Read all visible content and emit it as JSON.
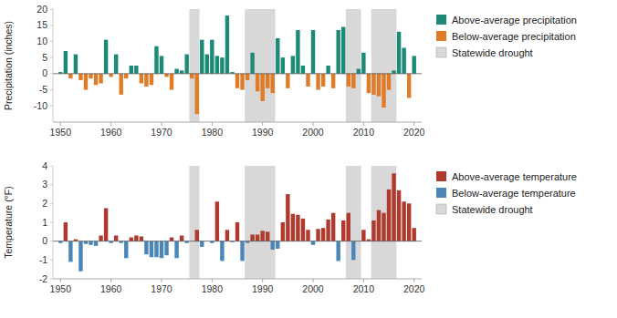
{
  "chart_data": [
    {
      "type": "bar",
      "ylabel": "Precipitation (inches)",
      "x": [
        1950,
        1951,
        1952,
        1953,
        1954,
        1955,
        1956,
        1957,
        1958,
        1959,
        1960,
        1961,
        1962,
        1963,
        1964,
        1965,
        1966,
        1967,
        1968,
        1969,
        1970,
        1971,
        1972,
        1973,
        1974,
        1975,
        1976,
        1977,
        1978,
        1979,
        1980,
        1981,
        1982,
        1983,
        1984,
        1985,
        1986,
        1987,
        1988,
        1989,
        1990,
        1991,
        1992,
        1993,
        1994,
        1995,
        1996,
        1997,
        1998,
        1999,
        2000,
        2001,
        2002,
        2003,
        2004,
        2005,
        2006,
        2007,
        2008,
        2009,
        2010,
        2011,
        2012,
        2013,
        2014,
        2015,
        2016,
        2017,
        2018,
        2019,
        2020
      ],
      "series": [
        {
          "name": "Above-average precipitation",
          "color": "#1d8a78",
          "values": [
            0.5,
            7.0,
            null,
            6.0,
            null,
            null,
            null,
            null,
            null,
            10.5,
            null,
            6.0,
            null,
            null,
            2.5,
            2.5,
            null,
            null,
            null,
            8.5,
            5.5,
            null,
            null,
            1.5,
            1.0,
            6.0,
            null,
            null,
            10.5,
            6.0,
            10.5,
            5.5,
            5.0,
            18.0,
            0.5,
            null,
            null,
            null,
            6.5,
            null,
            null,
            null,
            null,
            11.0,
            5.0,
            null,
            5.5,
            13.5,
            2.5,
            null,
            13.5,
            null,
            null,
            2.5,
            null,
            13.5,
            14.5,
            null,
            null,
            1.5,
            6.5,
            null,
            null,
            null,
            null,
            null,
            1.0,
            13.0,
            8.0,
            null,
            5.5
          ]
        },
        {
          "name": "Below-average precipitation",
          "color": "#e07b27",
          "values": [
            null,
            null,
            -1.5,
            null,
            -2.0,
            -5.0,
            -1.5,
            -3.5,
            -3.0,
            null,
            -1.0,
            null,
            -6.5,
            -1.5,
            null,
            null,
            -3.0,
            -4.0,
            -3.5,
            null,
            null,
            -1.0,
            -5.0,
            null,
            null,
            null,
            -1.5,
            -12.5,
            null,
            null,
            null,
            null,
            null,
            null,
            null,
            -4.5,
            -5.0,
            -2.0,
            null,
            -5.5,
            -8.5,
            -4.5,
            -6.0,
            null,
            null,
            -4.5,
            null,
            null,
            null,
            -4.0,
            null,
            -5.0,
            -4.0,
            null,
            -4.5,
            null,
            null,
            -4.0,
            -4.5,
            null,
            null,
            -6.0,
            -6.5,
            -7.0,
            -10.5,
            -5.0,
            null,
            null,
            null,
            -7.5,
            null
          ]
        }
      ],
      "spans": {
        "name": "Statewide drought",
        "color": "#d8d8d8",
        "ranges": [
          [
            1976,
            1977
          ],
          [
            1987,
            1992
          ],
          [
            2007,
            2009
          ],
          [
            2012,
            2016
          ]
        ]
      },
      "xlim": [
        1948.5,
        2021.5
      ],
      "xticks": [
        1950,
        1960,
        1970,
        1980,
        1990,
        2000,
        2010,
        2020
      ],
      "ylim": [
        -15,
        20
      ],
      "yticks": [
        -10,
        -5,
        0,
        5,
        10,
        15,
        20
      ],
      "grid": false,
      "legend": "right"
    },
    {
      "type": "bar",
      "ylabel": "Temperature (°F)",
      "x": [
        1950,
        1951,
        1952,
        1953,
        1954,
        1955,
        1956,
        1957,
        1958,
        1959,
        1960,
        1961,
        1962,
        1963,
        1964,
        1965,
        1966,
        1967,
        1968,
        1969,
        1970,
        1971,
        1972,
        1973,
        1974,
        1975,
        1976,
        1977,
        1978,
        1979,
        1980,
        1981,
        1982,
        1983,
        1984,
        1985,
        1986,
        1987,
        1988,
        1989,
        1990,
        1991,
        1992,
        1993,
        1994,
        1995,
        1996,
        1997,
        1998,
        1999,
        2000,
        2001,
        2002,
        2003,
        2004,
        2005,
        2006,
        2007,
        2008,
        2009,
        2010,
        2011,
        2012,
        2013,
        2014,
        2015,
        2016,
        2017,
        2018,
        2019,
        2020
      ],
      "series": [
        {
          "name": "Above-average temperature",
          "color": "#b03a2e",
          "values": [
            null,
            1.0,
            null,
            0.1,
            null,
            null,
            null,
            null,
            0.3,
            1.75,
            null,
            0.3,
            null,
            null,
            0.2,
            0.3,
            0.25,
            null,
            null,
            null,
            null,
            null,
            0.2,
            null,
            0.3,
            null,
            0.0,
            0.6,
            null,
            0.0,
            null,
            2.1,
            null,
            0.6,
            null,
            1.0,
            null,
            null,
            0.35,
            0.35,
            0.55,
            0.5,
            null,
            null,
            1.0,
            2.5,
            1.45,
            1.4,
            1.2,
            0.6,
            null,
            0.65,
            0.7,
            1.15,
            1.5,
            null,
            1.1,
            1.5,
            null,
            0.0,
            0.6,
            0.1,
            1.1,
            1.65,
            1.5,
            2.75,
            3.6,
            2.7,
            2.1,
            2.0,
            0.7
          ]
        },
        {
          "name": "Below-average temperature",
          "color": "#4a86b8",
          "values": [
            -0.1,
            null,
            -1.1,
            null,
            -1.6,
            -0.15,
            -0.2,
            -0.25,
            null,
            null,
            -0.1,
            null,
            -0.1,
            -0.9,
            null,
            null,
            null,
            -0.7,
            -0.85,
            -0.85,
            -0.9,
            -0.75,
            null,
            -0.9,
            null,
            -0.1,
            null,
            null,
            -0.3,
            null,
            -0.1,
            null,
            -1.05,
            null,
            -0.05,
            null,
            -1.05,
            -0.1,
            null,
            null,
            null,
            null,
            -0.45,
            -0.4,
            null,
            null,
            null,
            null,
            null,
            null,
            -0.2,
            null,
            null,
            null,
            null,
            -1.05,
            null,
            null,
            -1.0,
            null,
            null,
            null,
            null,
            null,
            null,
            null,
            null,
            null,
            null,
            null,
            null
          ]
        }
      ],
      "spans": {
        "name": "Statewide drought",
        "color": "#d8d8d8",
        "ranges": [
          [
            1976,
            1977
          ],
          [
            1987,
            1992
          ],
          [
            2007,
            2009
          ],
          [
            2012,
            2016
          ]
        ]
      },
      "xlim": [
        1948.5,
        2021.5
      ],
      "xticks": [
        1950,
        1960,
        1970,
        1980,
        1990,
        2000,
        2010,
        2020
      ],
      "ylim": [
        -2,
        4
      ],
      "yticks": [
        -2,
        -1,
        0,
        1,
        2,
        3,
        4
      ],
      "grid": false,
      "legend": "right"
    }
  ]
}
